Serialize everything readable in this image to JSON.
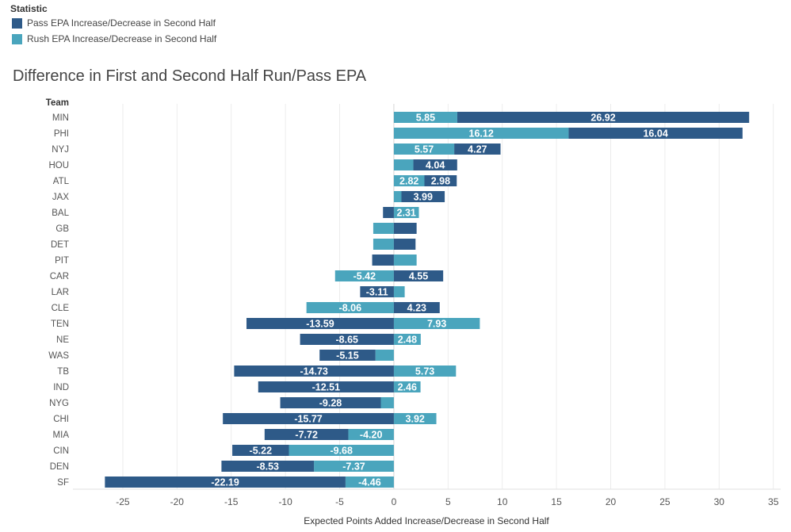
{
  "chart_data": {
    "type": "bar",
    "orientation": "horizontal",
    "stacked": "diverging",
    "title": "Difference in First and Second Half Run/Pass EPA",
    "legend_title": "Statistic",
    "legend_position": "top-left",
    "category_header": "Team",
    "xlabel": "Expected Points Added Increase/Decrease in Second Half",
    "xlim": [
      -29.6,
      35.68
    ],
    "xticks": [
      -25,
      -20,
      -15,
      -10,
      -5,
      0,
      5,
      10,
      15,
      20,
      25,
      30,
      35
    ],
    "grid": "vertical",
    "categories": [
      "MIN",
      "PHI",
      "NYJ",
      "HOU",
      "ATL",
      "JAX",
      "BAL",
      "GB",
      "DET",
      "PIT",
      "CAR",
      "LAR",
      "CLE",
      "TEN",
      "NE",
      "WAS",
      "TB",
      "IND",
      "NYG",
      "CHI",
      "MIA",
      "CIN",
      "DEN",
      "SF"
    ],
    "series": [
      {
        "name": "Pass EPA Increase/Decrease in Second Half",
        "color": "#2e5a88",
        "values": [
          26.92,
          16.04,
          4.27,
          4.04,
          2.98,
          3.99,
          -1.0,
          2.1,
          2.0,
          -2.0,
          4.55,
          -3.11,
          4.23,
          -13.59,
          -8.65,
          -5.15,
          -14.73,
          -12.51,
          -9.28,
          -15.77,
          -7.72,
          -5.22,
          -8.53,
          -22.19
        ]
      },
      {
        "name": "Rush EPA Increase/Decrease in Second Half",
        "color": "#4aa5bd",
        "values": [
          5.85,
          16.12,
          5.57,
          1.8,
          2.82,
          0.7,
          2.31,
          -1.9,
          -1.9,
          2.1,
          -5.42,
          1.0,
          -8.06,
          7.93,
          2.48,
          -1.7,
          5.73,
          2.46,
          -1.2,
          3.92,
          -4.2,
          -9.68,
          -7.37,
          -4.46
        ]
      }
    ]
  }
}
